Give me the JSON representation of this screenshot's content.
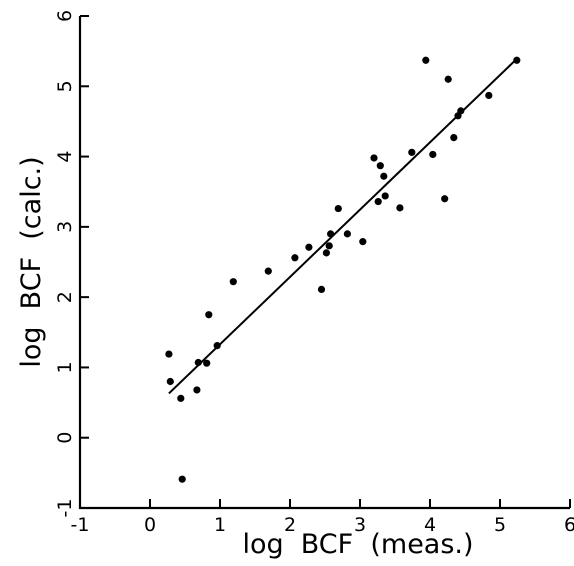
{
  "chart_data": {
    "type": "scatter",
    "title": "",
    "xlabel": "log  BCF  (meas.)",
    "ylabel": "log  BCF  (calc.)",
    "xlim": [
      -1,
      6
    ],
    "ylim": [
      -1,
      6
    ],
    "xticks": [
      "-1",
      "0",
      "1",
      "2",
      "3",
      "4",
      "5",
      "6"
    ],
    "yticks": [
      "-1",
      "0",
      "1",
      "2",
      "3",
      "4",
      "5",
      "6"
    ],
    "grid": false,
    "series": [
      {
        "points": [
          {
            "x": 0.27,
            "y": 1.19
          },
          {
            "x": 0.29,
            "y": 0.8
          },
          {
            "x": 0.44,
            "y": 0.56
          },
          {
            "x": 0.46,
            "y": -0.59
          },
          {
            "x": 0.67,
            "y": 0.68
          },
          {
            "x": 0.69,
            "y": 1.07
          },
          {
            "x": 0.81,
            "y": 1.06
          },
          {
            "x": 0.84,
            "y": 1.75
          },
          {
            "x": 0.96,
            "y": 1.31
          },
          {
            "x": 1.19,
            "y": 2.22
          },
          {
            "x": 1.69,
            "y": 2.37
          },
          {
            "x": 2.07,
            "y": 2.56
          },
          {
            "x": 2.27,
            "y": 2.71
          },
          {
            "x": 2.45,
            "y": 2.11
          },
          {
            "x": 2.52,
            "y": 2.63
          },
          {
            "x": 2.56,
            "y": 2.73
          },
          {
            "x": 2.58,
            "y": 2.9
          },
          {
            "x": 2.69,
            "y": 3.26
          },
          {
            "x": 2.82,
            "y": 2.9
          },
          {
            "x": 3.04,
            "y": 2.79
          },
          {
            "x": 3.2,
            "y": 3.98
          },
          {
            "x": 3.26,
            "y": 3.36
          },
          {
            "x": 3.29,
            "y": 3.87
          },
          {
            "x": 3.34,
            "y": 3.72
          },
          {
            "x": 3.36,
            "y": 3.44
          },
          {
            "x": 3.57,
            "y": 3.27
          },
          {
            "x": 3.74,
            "y": 4.06
          },
          {
            "x": 3.94,
            "y": 5.37
          },
          {
            "x": 4.04,
            "y": 4.03
          },
          {
            "x": 4.21,
            "y": 3.4
          },
          {
            "x": 4.26,
            "y": 5.1
          },
          {
            "x": 4.34,
            "y": 4.27
          },
          {
            "x": 4.4,
            "y": 4.58
          },
          {
            "x": 4.44,
            "y": 4.65
          },
          {
            "x": 4.84,
            "y": 4.87
          },
          {
            "x": 5.24,
            "y": 5.37
          }
        ]
      }
    ],
    "fit_line": {
      "x": [
        0.27,
        5.25
      ],
      "y": [
        0.63,
        5.4
      ]
    }
  }
}
